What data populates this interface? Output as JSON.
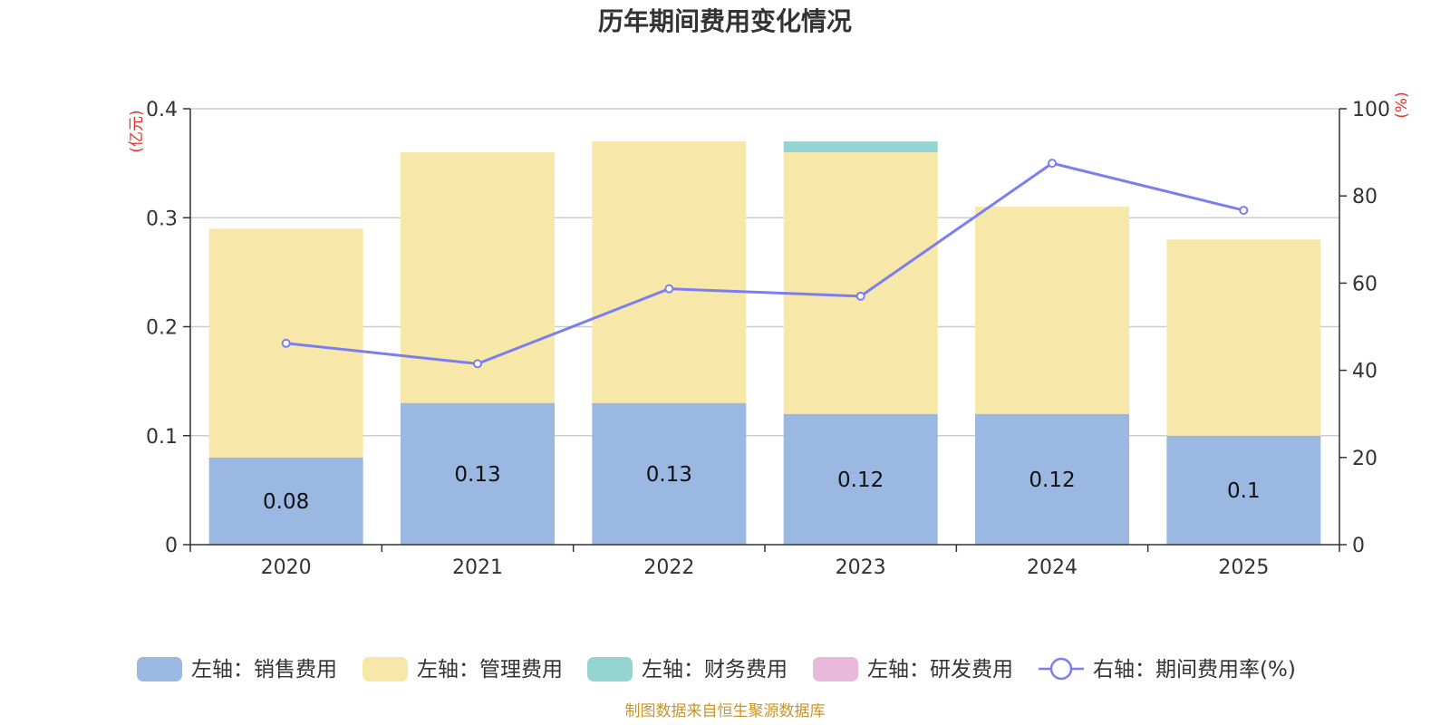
{
  "chart_data": {
    "type": "bar",
    "title": "历年期间费用变化情况",
    "categories": [
      "2020",
      "2021",
      "2022",
      "2023",
      "2024",
      "2025"
    ],
    "left_axis": {
      "unit": "(亿元)",
      "ylim": [
        0,
        0.4
      ],
      "ticks": [
        "0",
        "0.1",
        "0.2",
        "0.3",
        "0.4"
      ]
    },
    "right_axis": {
      "unit": "(%)",
      "ylim": [
        0,
        100
      ],
      "ticks": [
        "0",
        "20",
        "40",
        "60",
        "80",
        "100"
      ]
    },
    "series": [
      {
        "name": "左轴：销售费用",
        "axis": "left",
        "kind": "bar",
        "color": "#9bb8e2",
        "values": [
          0.08,
          0.13,
          0.13,
          0.12,
          0.12,
          0.1
        ],
        "labels": [
          "0.08",
          "0.13",
          "0.13",
          "0.12",
          "0.12",
          "0.1"
        ]
      },
      {
        "name": "左轴：管理费用",
        "axis": "left",
        "kind": "bar",
        "color": "#f7e7a8",
        "values": [
          0.21,
          0.23,
          0.24,
          0.24,
          0.19,
          0.18
        ]
      },
      {
        "name": "左轴：财务费用",
        "axis": "left",
        "kind": "bar",
        "color": "#96d3d3",
        "values": [
          0,
          0,
          0,
          0.01,
          0,
          0
        ]
      },
      {
        "name": "左轴：研发费用",
        "axis": "left",
        "kind": "bar",
        "color": "#e8b9da",
        "values": [
          0,
          0,
          0,
          0,
          0,
          0
        ]
      },
      {
        "name": "右轴：期间费用率(%)",
        "axis": "right",
        "kind": "line",
        "color": "#7b7ef0",
        "values": [
          46.2,
          41.5,
          58.7,
          57.0,
          87.5,
          76.7
        ]
      }
    ],
    "grid": true
  },
  "source": "制图数据来自恒生聚源数据库"
}
